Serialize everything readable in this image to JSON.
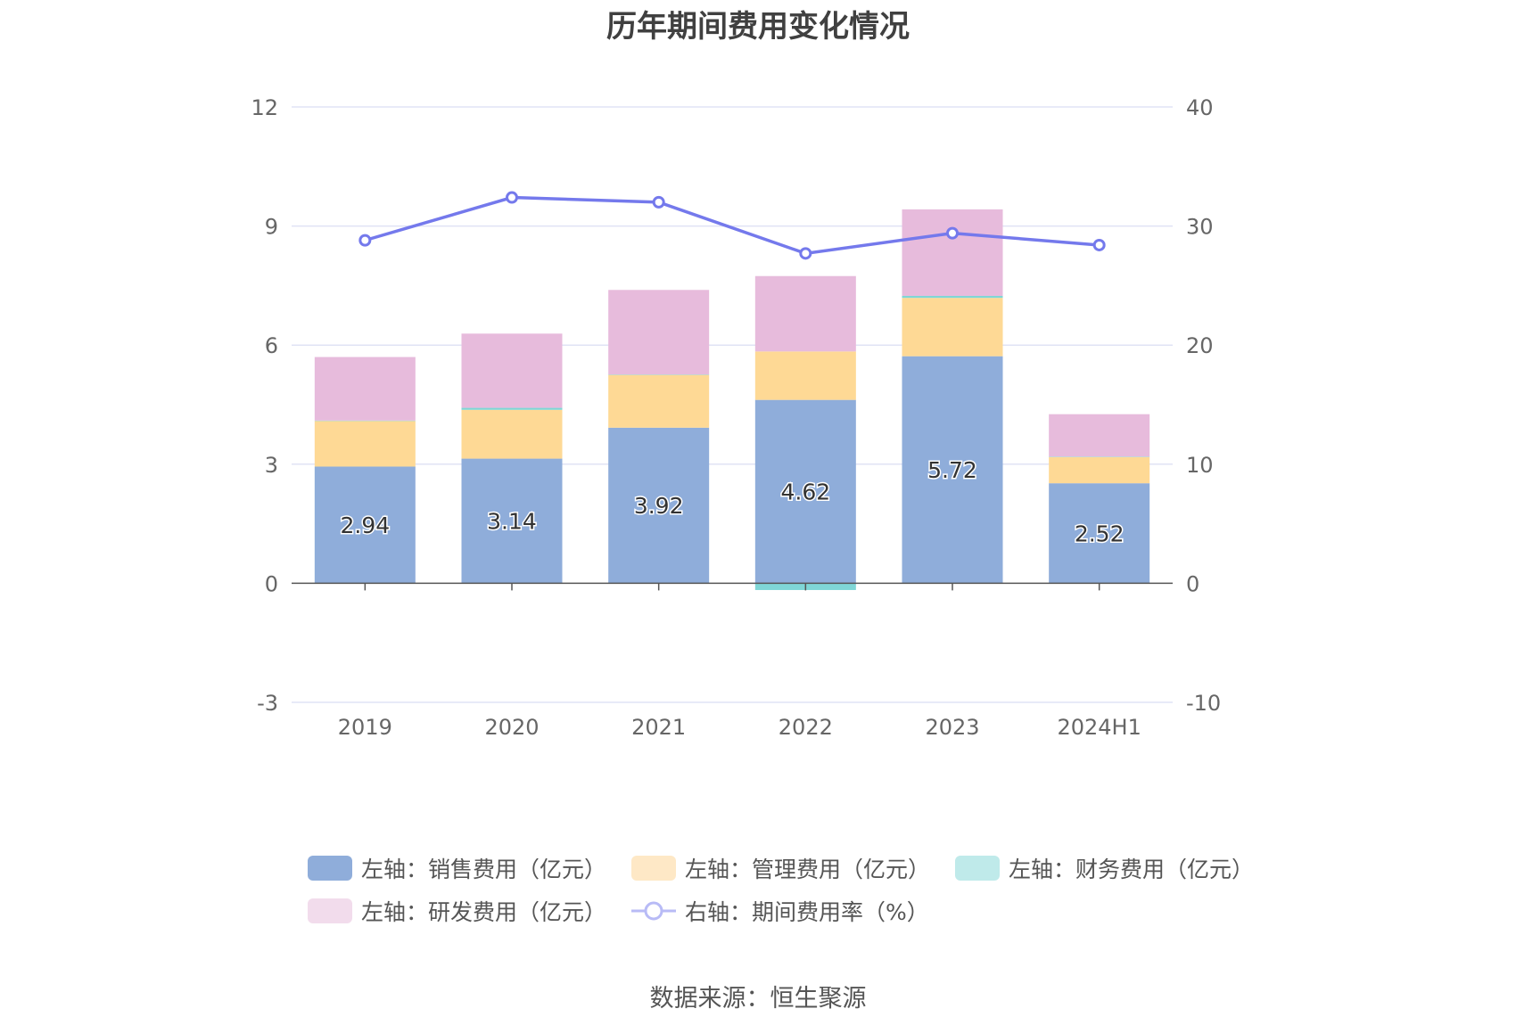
{
  "title": "历年期间费用变化情况",
  "source": "数据来源：恒生聚源",
  "chart_data": {
    "type": "bar",
    "stacked": true,
    "categories": [
      "2019",
      "2020",
      "2021",
      "2022",
      "2023",
      "2024H1"
    ],
    "left_axis": {
      "min": -3,
      "max": 12,
      "ticks": [
        "12",
        "9",
        "6",
        "3",
        "0",
        "-3"
      ]
    },
    "right_axis": {
      "min": -10,
      "max": 40,
      "ticks": [
        "40",
        "30",
        "20",
        "10",
        "0",
        "-10"
      ]
    },
    "series": [
      {
        "name": "左轴：销售费用（亿元）",
        "axis": "left",
        "color": "#8fadda",
        "values": [
          2.94,
          3.14,
          3.92,
          4.62,
          5.72,
          2.52
        ],
        "labels": [
          "2.94",
          "3.14",
          "3.92",
          "4.62",
          "5.72",
          "2.52"
        ]
      },
      {
        "name": "左轴：管理费用（亿元）",
        "axis": "left",
        "color": "#fed995",
        "legend_color": "#fee8c6",
        "values": [
          1.15,
          1.23,
          1.33,
          1.22,
          1.47,
          0.66
        ]
      },
      {
        "name": "左轴：财务费用（亿元）",
        "axis": "left",
        "color": "#7fd6d6",
        "legend_color": "#bfeaea",
        "values": [
          0.01,
          0.05,
          0.01,
          -0.17,
          0.05,
          0.01
        ]
      },
      {
        "name": "左轴：研发费用（亿元）",
        "axis": "left",
        "color": "#e7bbdc",
        "legend_color": "#f2dcec",
        "values": [
          1.6,
          1.87,
          2.13,
          1.9,
          2.18,
          1.07
        ]
      },
      {
        "name": "右轴：期间费用率（%）",
        "axis": "right",
        "type": "line",
        "color": "#7479ec",
        "legend_color": "#b8bbf6",
        "values": [
          28.8,
          32.4,
          32.0,
          27.7,
          29.4,
          28.4
        ]
      }
    ],
    "grid": true,
    "legend_position": "bottom"
  }
}
